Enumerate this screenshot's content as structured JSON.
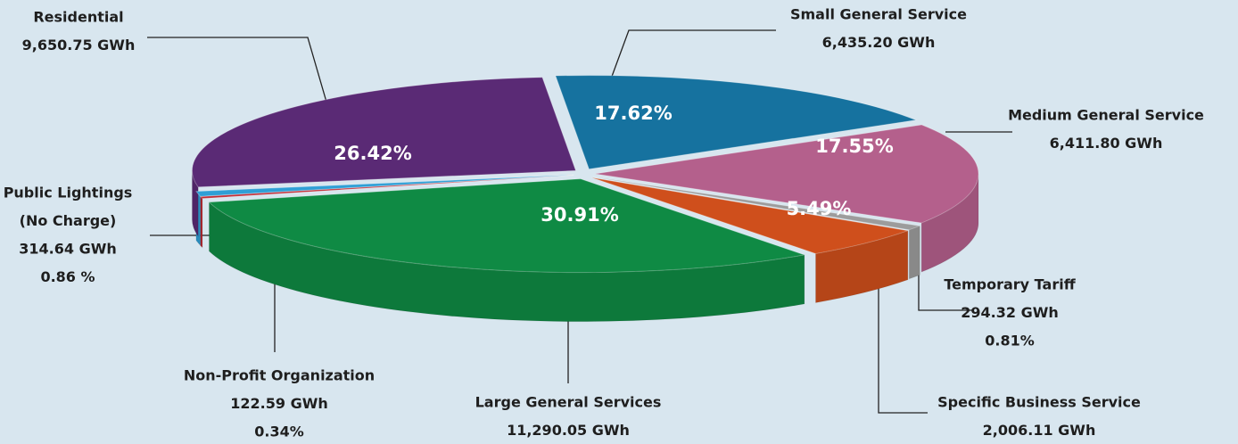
{
  "chart_data": {
    "type": "pie",
    "categories": [
      "Small General Service",
      "Medium General Service",
      "Temporary Tariff",
      "Specific Business Service",
      "Large  General Services",
      "Non-Profit Organization",
      [
        "Public Lightings",
        "(No Charge)"
      ],
      "Residential"
    ],
    "values": [
      6435.2,
      6411.8,
      294.32,
      2006.11,
      11290.05,
      122.59,
      314.64,
      9650.75
    ],
    "value_labels": [
      "6,435.20 GWh",
      "6,411.80 GWh",
      "294.32 GWh",
      "2,006.11 GWh",
      "11,290.05 GWh",
      "122.59 GWh",
      "314.64 GWh",
      "9,650.75 GWh"
    ],
    "percents": [
      17.62,
      17.55,
      0.81,
      5.49,
      30.91,
      0.34,
      0.86,
      26.42
    ],
    "percent_labels": [
      "17.62%",
      "17.55%",
      "0.81%",
      "5.49%",
      "30.91%",
      "0.34%",
      "0.86 %",
      "26.42%"
    ],
    "colors": [
      "#16729f",
      "#b4608c",
      "#9c9c9c",
      "#cf4f1c",
      "#0f8a44",
      "#c02630",
      "#2f9fd6",
      "#5a2a75"
    ]
  }
}
